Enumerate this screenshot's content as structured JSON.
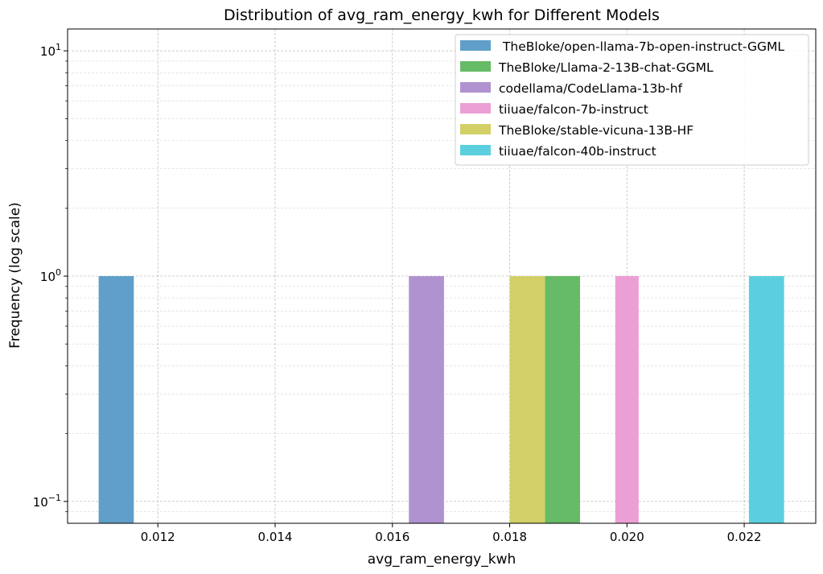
{
  "chart_data": {
    "type": "bar",
    "title": "Distribution of avg_ram_energy_kwh for Different Models",
    "xlabel": "avg_ram_energy_kwh",
    "ylabel": "Frequency (log scale)",
    "yscale": "log",
    "xlim": [
      0.01046,
      0.02322
    ],
    "ylim": [
      0.08,
      12.5
    ],
    "x_ticks": [
      0.012,
      0.014,
      0.016,
      0.018,
      0.02,
      0.022
    ],
    "x_tick_labels": [
      "0.012",
      "0.014",
      "0.016",
      "0.018",
      "0.020",
      "0.022"
    ],
    "y_ticks": [
      {
        "value": 0.1,
        "base": "10",
        "exp": "−1"
      },
      {
        "value": 1,
        "base": "10",
        "exp": "0"
      },
      {
        "value": 10,
        "base": "10",
        "exp": "1"
      }
    ],
    "grid": true,
    "legend_position": "top-right",
    "series": [
      {
        "name": " TheBloke/open-llama-7b-open-instruct-GGML",
        "color": "#5f9fca",
        "bin_start": 0.01099,
        "bin_end": 0.01159,
        "count": 1
      },
      {
        "name": "TheBloke/Llama-2-13B-chat-GGML",
        "color": "#66bb66",
        "bin_start": 0.0186,
        "bin_end": 0.0192,
        "count": 1
      },
      {
        "name": "codellama/CodeLlama-13b-hf",
        "color": "#b192d0",
        "bin_start": 0.01628,
        "bin_end": 0.01688,
        "count": 1
      },
      {
        "name": "tiiuae/falcon-7b-instruct",
        "color": "#ec9fd4",
        "bin_start": 0.0198,
        "bin_end": 0.0202,
        "count": 1
      },
      {
        "name": "TheBloke/stable-vicuna-13B-HF",
        "color": "#d2d066",
        "bin_start": 0.018,
        "bin_end": 0.0186,
        "count": 1
      },
      {
        "name": "tiiuae/falcon-40b-instruct",
        "color": "#5bcfdd",
        "bin_start": 0.02208,
        "bin_end": 0.02268,
        "count": 1
      }
    ]
  }
}
